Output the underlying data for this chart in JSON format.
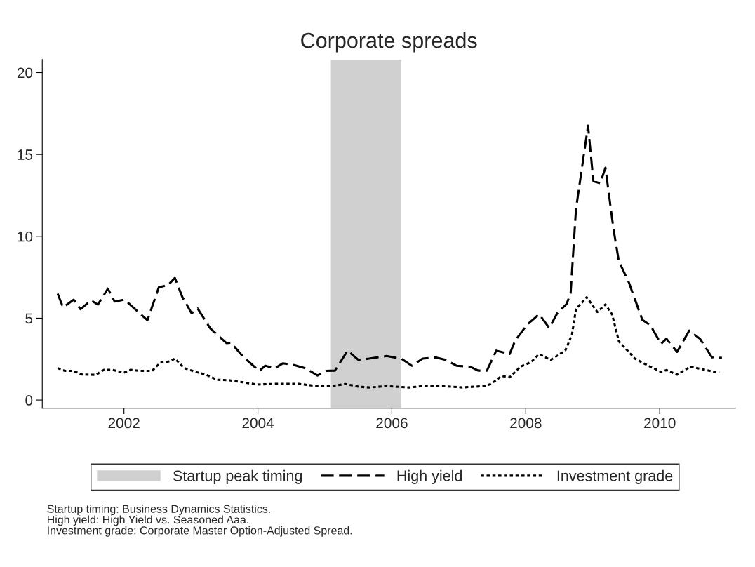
{
  "chart_data": {
    "type": "line",
    "title": "Corporate spreads",
    "xlim": [
      2000.78,
      2011.13
    ],
    "xticks": [
      2002,
      2004,
      2006,
      2008,
      2010
    ],
    "ylim": [
      -0.5,
      20.8
    ],
    "yticks": [
      0,
      5,
      10,
      15,
      20
    ],
    "grid": false,
    "legend": "bottom",
    "bands": [
      {
        "axis": "x",
        "from": 2005.09,
        "to": 2006.14,
        "label": "Startup peak timing",
        "color": "#d0d0d0"
      }
    ],
    "series": [
      {
        "name": "High yield",
        "color": "#000000",
        "line_style": "dashed",
        "x": [
          2001.01,
          2001.09,
          2001.25,
          2001.35,
          2001.51,
          2001.61,
          2001.76,
          2001.86,
          2002.01,
          2002.1,
          2002.35,
          2002.52,
          2002.66,
          2002.76,
          2002.87,
          2003.01,
          2003.1,
          2003.29,
          2003.53,
          2003.6,
          2003.78,
          2004.02,
          2004.11,
          2004.25,
          2004.37,
          2004.54,
          2004.72,
          2004.89,
          2005.02,
          2005.15,
          2005.34,
          2005.5,
          2005.66,
          2005.92,
          2006.14,
          2006.3,
          2006.46,
          2006.65,
          2006.81,
          2006.97,
          2007.17,
          2007.29,
          2007.42,
          2007.56,
          2007.76,
          2007.84,
          2008.02,
          2008.2,
          2008.35,
          2008.47,
          2008.61,
          2008.67,
          2008.75,
          2008.93,
          2009.01,
          2009.11,
          2009.19,
          2009.31,
          2009.39,
          2009.54,
          2009.74,
          2009.86,
          2010.02,
          2010.1,
          2010.26,
          2010.44,
          2010.6,
          2010.78,
          2010.93
        ],
        "values": [
          6.5,
          5.66,
          6.13,
          5.55,
          6.09,
          5.83,
          6.81,
          6.02,
          6.13,
          5.8,
          4.87,
          6.88,
          7.03,
          7.46,
          6.31,
          5.3,
          5.59,
          4.37,
          3.48,
          3.5,
          2.64,
          1.78,
          2.1,
          1.93,
          2.24,
          2.14,
          1.93,
          1.5,
          1.78,
          1.8,
          3.02,
          2.45,
          2.53,
          2.69,
          2.53,
          2.09,
          2.53,
          2.61,
          2.45,
          2.09,
          2.04,
          1.8,
          1.8,
          3.02,
          2.81,
          3.62,
          4.6,
          5.25,
          4.4,
          5.3,
          5.87,
          6.53,
          11.66,
          16.76,
          13.37,
          13.24,
          14.19,
          10.44,
          8.48,
          7.18,
          4.9,
          4.57,
          3.43,
          3.75,
          2.94,
          4.24,
          3.75,
          2.61,
          2.58
        ]
      },
      {
        "name": "Investment grade",
        "color": "#000000",
        "line_style": "dotted",
        "x": [
          2001.01,
          2001.12,
          2001.25,
          2001.37,
          2001.58,
          2001.7,
          2001.82,
          2002.0,
          2002.1,
          2002.24,
          2002.42,
          2002.54,
          2002.68,
          2002.76,
          2002.9,
          2003.08,
          2003.22,
          2003.39,
          2003.57,
          2003.74,
          2003.99,
          2004.26,
          2004.61,
          2004.89,
          2005.1,
          2005.31,
          2005.5,
          2005.66,
          2005.92,
          2006.26,
          2006.46,
          2006.77,
          2007.05,
          2007.37,
          2007.48,
          2007.64,
          2007.76,
          2007.92,
          2008.08,
          2008.2,
          2008.37,
          2008.59,
          2008.69,
          2008.75,
          2008.91,
          2009.07,
          2009.19,
          2009.29,
          2009.39,
          2009.63,
          2009.82,
          2010.02,
          2010.1,
          2010.26,
          2010.46,
          2010.69,
          2010.89
        ],
        "values": [
          1.95,
          1.78,
          1.78,
          1.56,
          1.54,
          1.85,
          1.85,
          1.67,
          1.85,
          1.78,
          1.78,
          2.28,
          2.36,
          2.53,
          1.95,
          1.71,
          1.56,
          1.24,
          1.21,
          1.11,
          0.95,
          0.99,
          0.99,
          0.85,
          0.85,
          0.98,
          0.82,
          0.77,
          0.85,
          0.77,
          0.85,
          0.85,
          0.77,
          0.85,
          0.98,
          1.47,
          1.39,
          2.04,
          2.32,
          2.81,
          2.45,
          3.02,
          4.0,
          5.55,
          6.28,
          5.38,
          5.84,
          5.22,
          3.59,
          2.53,
          2.12,
          1.72,
          1.83,
          1.55,
          2.04,
          1.83,
          1.67
        ]
      }
    ],
    "annotations": [
      "Startup timing: Business Dynamics Statistics.",
      "High yield: High Yield vs. Seasoned Aaa.",
      "Investment grade: Corporate Master Option-Adjusted Spread."
    ]
  }
}
